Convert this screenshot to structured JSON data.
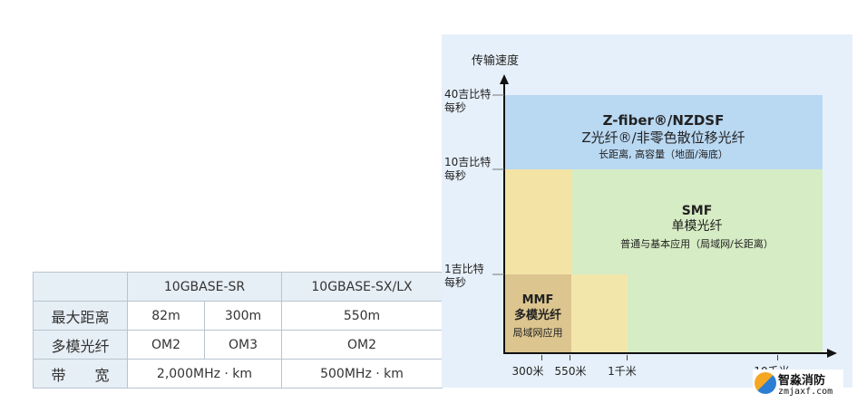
{
  "table": {
    "header": [
      "",
      "10GBASE-SR",
      "10GBASE-SX/LX"
    ],
    "rows": [
      {
        "label": "最大距离",
        "cells": [
          "82m",
          "300m",
          "550m"
        ]
      },
      {
        "label": "多模光纤",
        "cells": [
          "OM2",
          "OM3",
          "OM2"
        ]
      },
      {
        "label": "带　　宽",
        "cells": [
          "2,000MHz · km",
          "500MHz · km"
        ]
      }
    ]
  },
  "diagram": {
    "y_axis_label": "传输速度",
    "y_ticks": [
      "40吉比特每秒",
      "10吉比特每秒",
      "1吉比特每秒"
    ],
    "x_ticks": [
      "300米",
      "550米",
      "1千米",
      "10千米"
    ],
    "regions": {
      "nzdsf": {
        "title": "Z-fiber®/NZDSF",
        "subtitle": "Z光纤®/非零色散位移光纤",
        "desc": "长距离, 高容量（地面/海底）",
        "color": "#b9d8f2"
      },
      "smf": {
        "title": "SMF",
        "subtitle": "单模光纤",
        "desc": "普通与基本应用（局域网/长距离）",
        "color": "#d6ecc4"
      },
      "mmf": {
        "title": "MMF",
        "subtitle": "多模光纤",
        "desc": "局域网应用",
        "color": "#dcc58e"
      }
    },
    "colors": {
      "panel": "#e6f0fa",
      "yellow": "#f3e3a5",
      "light_yellow": "#f3e6ab"
    }
  },
  "watermark": {
    "name": "智淼消防",
    "site": "zmjaxf.com"
  }
}
